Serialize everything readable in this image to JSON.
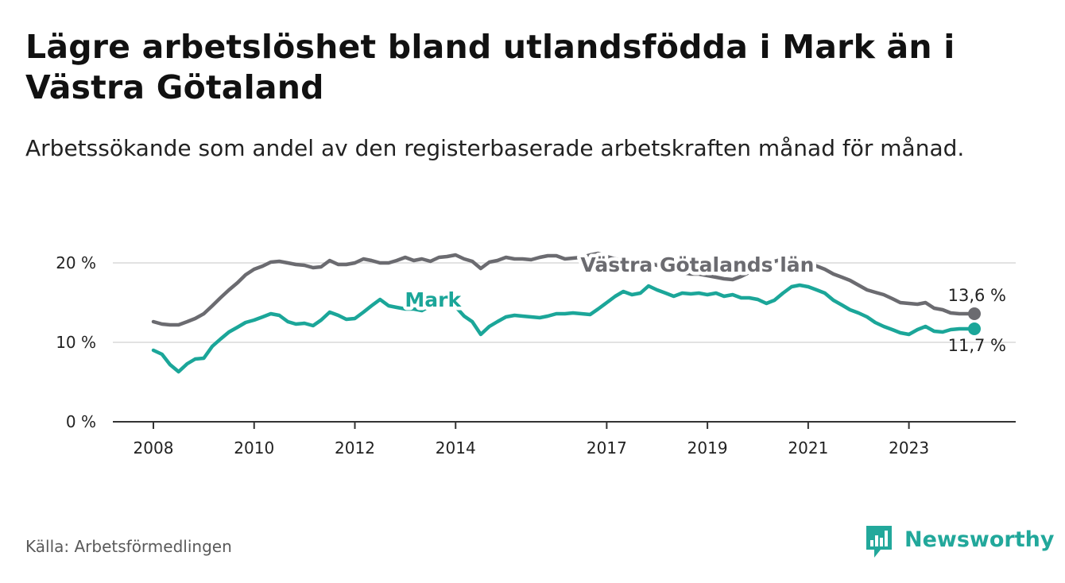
{
  "title": "Lägre arbetslöshet bland utlandsfödda i Mark än i Västra Götaland",
  "subtitle": "Arbetssökande som andel av den registerbaserade arbetskraften månad för månad.",
  "source": "Källa: Arbetsförmedlingen",
  "brand": {
    "name": "Newsworthy",
    "icon": "bar-chart-icon",
    "color": "#22a89b"
  },
  "chart_data": {
    "type": "line",
    "title": "Lägre arbetslöshet bland utlandsfödda i Mark än i Västra Götaland",
    "xlabel": "",
    "ylabel": "",
    "ylim": [
      0,
      20
    ],
    "xlim": [
      2008.0,
      2024.6
    ],
    "yticks": [
      {
        "value": 0,
        "label": "0 %"
      },
      {
        "value": 10,
        "label": "10 %"
      },
      {
        "value": 20,
        "label": "20 %"
      }
    ],
    "xticks": [
      {
        "value": 2008.0,
        "label": "2008"
      },
      {
        "value": 2010.0,
        "label": "2010"
      },
      {
        "value": 2012.0,
        "label": "2012"
      },
      {
        "value": 2014.0,
        "label": "2014"
      },
      {
        "value": 2017.0,
        "label": "2017"
      },
      {
        "value": 2019.0,
        "label": "2019"
      },
      {
        "value": 2021.0,
        "label": "2021"
      },
      {
        "value": 2023.0,
        "label": "2023"
      }
    ],
    "grid": true,
    "series": [
      {
        "name": "Västra Götalands län",
        "color": "#6b6b70",
        "end_label": "13,6 %",
        "points": [
          [
            2008.0,
            12.6
          ],
          [
            2008.17,
            12.3
          ],
          [
            2008.33,
            12.2
          ],
          [
            2008.5,
            12.2
          ],
          [
            2008.67,
            12.6
          ],
          [
            2008.83,
            13.0
          ],
          [
            2009.0,
            13.6
          ],
          [
            2009.17,
            14.6
          ],
          [
            2009.33,
            15.6
          ],
          [
            2009.5,
            16.6
          ],
          [
            2009.67,
            17.5
          ],
          [
            2009.83,
            18.5
          ],
          [
            2010.0,
            19.2
          ],
          [
            2010.17,
            19.6
          ],
          [
            2010.33,
            20.1
          ],
          [
            2010.5,
            20.2
          ],
          [
            2010.67,
            20.0
          ],
          [
            2010.83,
            19.8
          ],
          [
            2011.0,
            19.7
          ],
          [
            2011.17,
            19.4
          ],
          [
            2011.33,
            19.5
          ],
          [
            2011.5,
            20.3
          ],
          [
            2011.67,
            19.8
          ],
          [
            2011.83,
            19.8
          ],
          [
            2012.0,
            20.0
          ],
          [
            2012.17,
            20.5
          ],
          [
            2012.33,
            20.3
          ],
          [
            2012.5,
            20.0
          ],
          [
            2012.67,
            20.0
          ],
          [
            2012.83,
            20.3
          ],
          [
            2013.0,
            20.7
          ],
          [
            2013.17,
            20.3
          ],
          [
            2013.33,
            20.5
          ],
          [
            2013.5,
            20.2
          ],
          [
            2013.67,
            20.7
          ],
          [
            2013.83,
            20.8
          ],
          [
            2014.0,
            21.0
          ],
          [
            2014.17,
            20.5
          ],
          [
            2014.33,
            20.2
          ],
          [
            2014.5,
            19.3
          ],
          [
            2014.67,
            20.1
          ],
          [
            2014.83,
            20.3
          ],
          [
            2015.0,
            20.7
          ],
          [
            2015.17,
            20.5
          ],
          [
            2015.33,
            20.5
          ],
          [
            2015.5,
            20.4
          ],
          [
            2015.67,
            20.7
          ],
          [
            2015.83,
            20.9
          ],
          [
            2016.0,
            20.9
          ],
          [
            2016.17,
            20.5
          ],
          [
            2016.33,
            20.6
          ],
          [
            2016.5,
            20.7
          ],
          [
            2016.67,
            21.0
          ],
          [
            2016.83,
            21.2
          ],
          [
            2017.0,
            20.8
          ],
          [
            2017.17,
            20.5
          ],
          [
            2017.33,
            20.3
          ],
          [
            2017.5,
            20.4
          ],
          [
            2017.67,
            20.3
          ],
          [
            2017.83,
            20.0
          ],
          [
            2018.0,
            19.7
          ],
          [
            2018.17,
            19.5
          ],
          [
            2018.33,
            19.1
          ],
          [
            2018.5,
            18.8
          ],
          [
            2018.67,
            18.6
          ],
          [
            2018.83,
            18.6
          ],
          [
            2019.0,
            18.4
          ],
          [
            2019.17,
            18.2
          ],
          [
            2019.33,
            18.0
          ],
          [
            2019.5,
            17.9
          ],
          [
            2019.67,
            18.3
          ],
          [
            2019.83,
            18.8
          ],
          [
            2020.0,
            19.3
          ],
          [
            2020.17,
            19.7
          ],
          [
            2020.33,
            20.2
          ],
          [
            2020.5,
            20.5
          ],
          [
            2020.67,
            20.5
          ],
          [
            2020.83,
            20.3
          ],
          [
            2021.0,
            20.1
          ],
          [
            2021.17,
            19.6
          ],
          [
            2021.33,
            19.2
          ],
          [
            2021.5,
            18.6
          ],
          [
            2021.67,
            18.2
          ],
          [
            2021.83,
            17.8
          ],
          [
            2022.0,
            17.2
          ],
          [
            2022.17,
            16.6
          ],
          [
            2022.33,
            16.3
          ],
          [
            2022.5,
            16.0
          ],
          [
            2022.67,
            15.5
          ],
          [
            2022.83,
            15.0
          ],
          [
            2023.0,
            14.9
          ],
          [
            2023.17,
            14.8
          ],
          [
            2023.33,
            15.0
          ],
          [
            2023.5,
            14.3
          ],
          [
            2023.67,
            14.1
          ],
          [
            2023.83,
            13.7
          ],
          [
            2024.0,
            13.6
          ],
          [
            2024.17,
            13.6
          ],
          [
            2024.3,
            13.6
          ]
        ]
      },
      {
        "name": "Mark",
        "color": "#1ba699",
        "end_label": "11,7 %",
        "points": [
          [
            2008.0,
            9.0
          ],
          [
            2008.17,
            8.5
          ],
          [
            2008.33,
            7.2
          ],
          [
            2008.5,
            6.3
          ],
          [
            2008.67,
            7.3
          ],
          [
            2008.83,
            7.9
          ],
          [
            2009.0,
            8.0
          ],
          [
            2009.17,
            9.5
          ],
          [
            2009.33,
            10.4
          ],
          [
            2009.5,
            11.3
          ],
          [
            2009.67,
            11.9
          ],
          [
            2009.83,
            12.5
          ],
          [
            2010.0,
            12.8
          ],
          [
            2010.17,
            13.2
          ],
          [
            2010.33,
            13.6
          ],
          [
            2010.5,
            13.4
          ],
          [
            2010.67,
            12.6
          ],
          [
            2010.83,
            12.3
          ],
          [
            2011.0,
            12.4
          ],
          [
            2011.17,
            12.1
          ],
          [
            2011.33,
            12.8
          ],
          [
            2011.5,
            13.8
          ],
          [
            2011.67,
            13.4
          ],
          [
            2011.83,
            12.9
          ],
          [
            2012.0,
            13.0
          ],
          [
            2012.17,
            13.8
          ],
          [
            2012.33,
            14.6
          ],
          [
            2012.5,
            15.4
          ],
          [
            2012.67,
            14.6
          ],
          [
            2012.83,
            14.4
          ],
          [
            2013.0,
            14.2
          ],
          [
            2013.17,
            14.2
          ],
          [
            2013.33,
            14.0
          ],
          [
            2013.5,
            14.6
          ],
          [
            2013.67,
            15.3
          ],
          [
            2013.83,
            15.4
          ],
          [
            2014.0,
            14.5
          ],
          [
            2014.17,
            13.3
          ],
          [
            2014.33,
            12.6
          ],
          [
            2014.5,
            11.0
          ],
          [
            2014.67,
            12.0
          ],
          [
            2014.83,
            12.6
          ],
          [
            2015.0,
            13.2
          ],
          [
            2015.17,
            13.4
          ],
          [
            2015.33,
            13.3
          ],
          [
            2015.5,
            13.2
          ],
          [
            2015.67,
            13.1
          ],
          [
            2015.83,
            13.3
          ],
          [
            2016.0,
            13.6
          ],
          [
            2016.17,
            13.6
          ],
          [
            2016.33,
            13.7
          ],
          [
            2016.5,
            13.6
          ],
          [
            2016.67,
            13.5
          ],
          [
            2016.83,
            14.2
          ],
          [
            2017.0,
            15.0
          ],
          [
            2017.17,
            15.8
          ],
          [
            2017.33,
            16.4
          ],
          [
            2017.5,
            16.0
          ],
          [
            2017.67,
            16.2
          ],
          [
            2017.83,
            17.1
          ],
          [
            2018.0,
            16.6
          ],
          [
            2018.17,
            16.2
          ],
          [
            2018.33,
            15.8
          ],
          [
            2018.5,
            16.2
          ],
          [
            2018.67,
            16.1
          ],
          [
            2018.83,
            16.2
          ],
          [
            2019.0,
            16.0
          ],
          [
            2019.17,
            16.2
          ],
          [
            2019.33,
            15.8
          ],
          [
            2019.5,
            16.0
          ],
          [
            2019.67,
            15.6
          ],
          [
            2019.83,
            15.6
          ],
          [
            2020.0,
            15.4
          ],
          [
            2020.17,
            14.9
          ],
          [
            2020.33,
            15.3
          ],
          [
            2020.5,
            16.2
          ],
          [
            2020.67,
            17.0
          ],
          [
            2020.83,
            17.2
          ],
          [
            2021.0,
            17.0
          ],
          [
            2021.17,
            16.6
          ],
          [
            2021.33,
            16.2
          ],
          [
            2021.5,
            15.3
          ],
          [
            2021.67,
            14.7
          ],
          [
            2021.83,
            14.1
          ],
          [
            2022.0,
            13.7
          ],
          [
            2022.17,
            13.2
          ],
          [
            2022.33,
            12.5
          ],
          [
            2022.5,
            12.0
          ],
          [
            2022.67,
            11.6
          ],
          [
            2022.83,
            11.2
          ],
          [
            2023.0,
            11.0
          ],
          [
            2023.17,
            11.6
          ],
          [
            2023.33,
            12.0
          ],
          [
            2023.5,
            11.4
          ],
          [
            2023.67,
            11.3
          ],
          [
            2023.83,
            11.6
          ],
          [
            2024.0,
            11.7
          ],
          [
            2024.17,
            11.7
          ],
          [
            2024.3,
            11.7
          ]
        ]
      }
    ],
    "annotations": [
      {
        "text": "Västra Götalands län",
        "series": "Västra Götalands län",
        "x": 2018.8,
        "y": 18.9
      },
      {
        "text": "Mark",
        "series": "Mark",
        "x": 2013.55,
        "y": 14.5
      }
    ]
  }
}
